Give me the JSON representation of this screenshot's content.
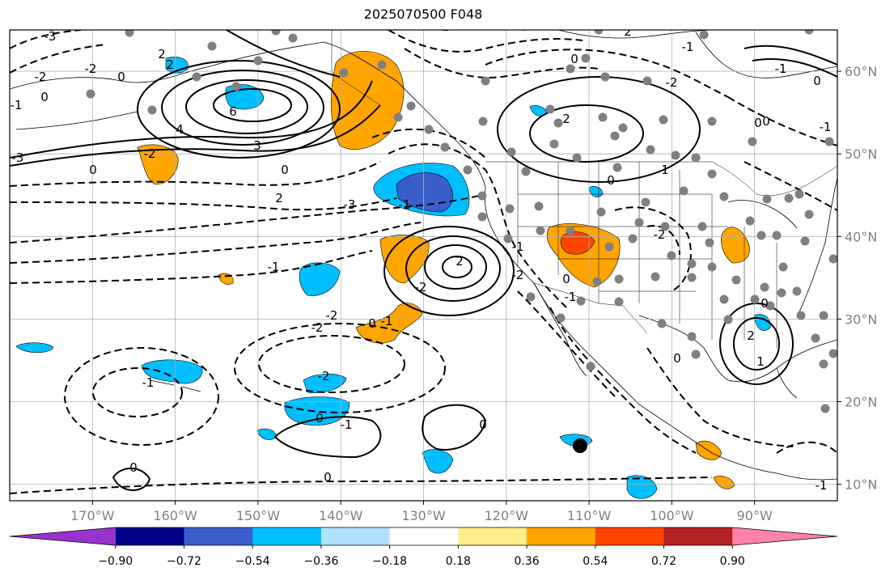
{
  "title": "2025070500 F048",
  "map": {
    "lon_range": [
      -180,
      -80
    ],
    "lat_range": [
      8,
      65
    ],
    "lon_ticks": [
      -170,
      -160,
      -150,
      -140,
      -130,
      -120,
      -110,
      -100,
      -90
    ],
    "lon_labels": [
      "170°W",
      "160°W",
      "150°W",
      "140°W",
      "130°W",
      "120°W",
      "110°W",
      "100°W",
      "90°W"
    ],
    "lat_ticks": [
      10,
      20,
      30,
      40,
      50,
      60
    ],
    "lat_labels": [
      "10°N",
      "20°N",
      "30°N",
      "40°N",
      "50°N",
      "60°N"
    ],
    "grid": true,
    "contour_labels": [
      "-3",
      "-2",
      "0",
      "2",
      "-2",
      "0",
      "-1",
      "4",
      "6",
      "-3",
      "0",
      "3",
      "-2",
      "0",
      "2",
      "-1",
      "-2",
      "-3",
      "-1",
      "2",
      "-3",
      "-2",
      "-2",
      "0",
      "-1",
      "-2",
      "0",
      "-1",
      "0",
      "-1",
      "0",
      "0",
      "0",
      "2",
      "-1",
      "-2",
      "0",
      "2",
      "-1",
      "0",
      "-1",
      "0",
      "-1",
      "-2",
      "-2",
      "0",
      "-1",
      "0",
      "1",
      "0",
      "0",
      "2",
      "1",
      "-1",
      "0",
      "2",
      "-1"
    ]
  },
  "colorbar": {
    "colors": [
      "#9932cc",
      "#00008b",
      "#3a5fcd",
      "#00bfff",
      "#b0e2ff",
      "#ffffff",
      "#ffec8b",
      "#ffa500",
      "#ff4500",
      "#b22222",
      "#ff82ab"
    ],
    "tick_labels": [
      "−0.90",
      "−0.72",
      "−0.54",
      "−0.36",
      "−0.18",
      "0.18",
      "0.36",
      "0.54",
      "0.72",
      "0.90"
    ],
    "extend": "both"
  }
}
